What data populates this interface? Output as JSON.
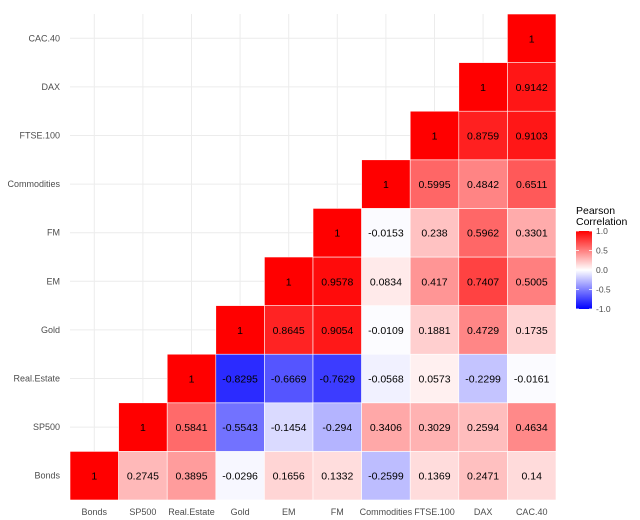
{
  "chart_data": {
    "type": "heatmap",
    "variables": [
      "Bonds",
      "SP500",
      "Real.Estate",
      "Gold",
      "EM",
      "FM",
      "Commodities",
      "FTSE.100",
      "DAX",
      "CAC.40"
    ],
    "cells": [
      [
        "Bonds",
        "Bonds",
        1
      ],
      [
        "SP500",
        "Bonds",
        0.2745
      ],
      [
        "Real.Estate",
        "Bonds",
        0.3895
      ],
      [
        "Gold",
        "Bonds",
        -0.0296
      ],
      [
        "EM",
        "Bonds",
        0.1656
      ],
      [
        "FM",
        "Bonds",
        0.1332
      ],
      [
        "Commodities",
        "Bonds",
        -0.2599
      ],
      [
        "FTSE.100",
        "Bonds",
        0.1369
      ],
      [
        "DAX",
        "Bonds",
        0.2471
      ],
      [
        "CAC.40",
        "Bonds",
        0.14
      ],
      [
        "SP500",
        "SP500",
        1
      ],
      [
        "Real.Estate",
        "SP500",
        0.5841
      ],
      [
        "Gold",
        "SP500",
        -0.5543
      ],
      [
        "EM",
        "SP500",
        -0.1454
      ],
      [
        "FM",
        "SP500",
        -0.294
      ],
      [
        "Commodities",
        "SP500",
        0.3406
      ],
      [
        "FTSE.100",
        "SP500",
        0.3029
      ],
      [
        "DAX",
        "SP500",
        0.2594
      ],
      [
        "CAC.40",
        "SP500",
        0.4634
      ],
      [
        "Real.Estate",
        "Real.Estate",
        1
      ],
      [
        "Gold",
        "Real.Estate",
        -0.8295
      ],
      [
        "EM",
        "Real.Estate",
        -0.6669
      ],
      [
        "FM",
        "Real.Estate",
        -0.7629
      ],
      [
        "Commodities",
        "Real.Estate",
        -0.0568
      ],
      [
        "FTSE.100",
        "Real.Estate",
        0.0573
      ],
      [
        "DAX",
        "Real.Estate",
        -0.2299
      ],
      [
        "CAC.40",
        "Real.Estate",
        -0.0161
      ],
      [
        "Gold",
        "Gold",
        1
      ],
      [
        "EM",
        "Gold",
        0.8645
      ],
      [
        "FM",
        "Gold",
        0.9054
      ],
      [
        "Commodities",
        "Gold",
        -0.0109
      ],
      [
        "FTSE.100",
        "Gold",
        0.1881
      ],
      [
        "DAX",
        "Gold",
        0.4729
      ],
      [
        "CAC.40",
        "Gold",
        0.1735
      ],
      [
        "EM",
        "EM",
        1
      ],
      [
        "FM",
        "EM",
        0.9578
      ],
      [
        "Commodities",
        "EM",
        0.0834
      ],
      [
        "FTSE.100",
        "EM",
        0.417
      ],
      [
        "DAX",
        "EM",
        0.7407
      ],
      [
        "CAC.40",
        "EM",
        0.5005
      ],
      [
        "FM",
        "FM",
        1
      ],
      [
        "Commodities",
        "FM",
        -0.0153
      ],
      [
        "FTSE.100",
        "FM",
        0.238
      ],
      [
        "DAX",
        "FM",
        0.5962
      ],
      [
        "CAC.40",
        "FM",
        0.3301
      ],
      [
        "Commodities",
        "Commodities",
        1
      ],
      [
        "FTSE.100",
        "Commodities",
        0.5995
      ],
      [
        "DAX",
        "Commodities",
        0.4842
      ],
      [
        "CAC.40",
        "Commodities",
        0.6511
      ],
      [
        "FTSE.100",
        "FTSE.100",
        1
      ],
      [
        "DAX",
        "FTSE.100",
        0.8759
      ],
      [
        "CAC.40",
        "FTSE.100",
        0.9103
      ],
      [
        "DAX",
        "DAX",
        1
      ],
      [
        "CAC.40",
        "DAX",
        0.9142
      ],
      [
        "CAC.40",
        "CAC.40",
        1
      ]
    ],
    "cell_labels": [
      "1",
      "0.2745",
      "0.3895",
      "-0.0296",
      "0.1656",
      "0.1332",
      "-0.2599",
      "0.1369",
      "0.2471",
      "0.14",
      "1",
      "0.5841",
      "-0.5543",
      "-0.1454",
      "-0.294",
      "0.3406",
      "0.3029",
      "0.2594",
      "0.4634",
      "1",
      "-0.8295",
      "-0.6669",
      "-0.7629",
      "-0.0568",
      "0.0573",
      "-0.2299",
      "-0.0161",
      "1",
      "0.8645",
      "0.9054",
      "-0.0109",
      "0.1881",
      "0.4729",
      "0.1735",
      "1",
      "0.9578",
      "0.0834",
      "0.417",
      "0.7407",
      "0.5005",
      "1",
      "-0.0153",
      "0.238",
      "0.5962",
      "0.3301",
      "1",
      "0.5995",
      "0.4842",
      "0.6511",
      "1",
      "0.8759",
      "0.9103",
      "1",
      "0.9142",
      "1"
    ],
    "legend": {
      "title": [
        "Pearson",
        "Correlation"
      ],
      "ticks": [
        1.0,
        0.5,
        0.0,
        -0.5,
        -1.0
      ],
      "tick_labels": [
        "1.0",
        "0.5",
        "0.0",
        "-0.5",
        "-1.0"
      ],
      "placement": "right"
    },
    "color_scale": {
      "low": "#0000ff",
      "mid": "#ffffff",
      "high": "#ff0000",
      "limits": [
        -1,
        1
      ]
    },
    "grid": true,
    "xlabel": "",
    "ylabel": "",
    "title": ""
  }
}
